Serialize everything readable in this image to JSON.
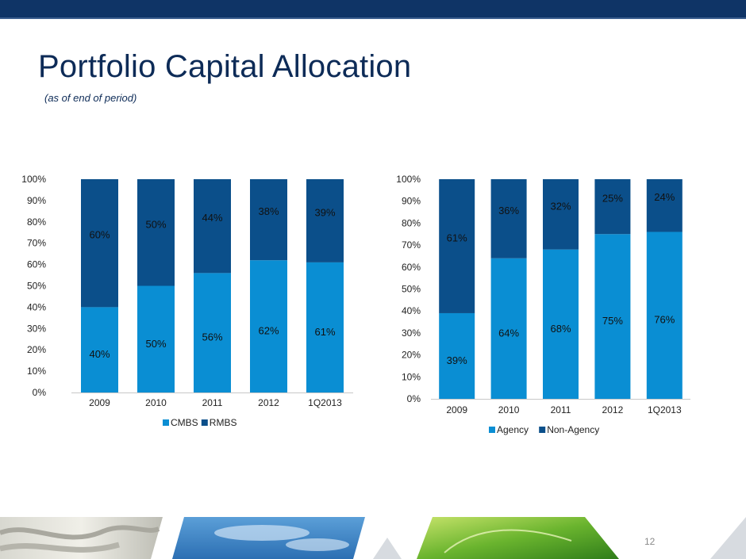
{
  "page": {
    "title": "Portfolio Capital Allocation",
    "subtitle": "(as of end of period)",
    "page_number": "12"
  },
  "colors": {
    "light_blue": "#0a8ed3",
    "dark_blue": "#0b4f8a",
    "navy": "#0d2b57"
  },
  "chart_data": [
    {
      "type": "bar",
      "stacked": true,
      "categories": [
        "2009",
        "2010",
        "2011",
        "2012",
        "1Q2013"
      ],
      "series": [
        {
          "name": "CMBS",
          "color": "#0a8ed3",
          "values": [
            40,
            50,
            56,
            62,
            61
          ],
          "labels": [
            "40%",
            "50%",
            "56%",
            "62%",
            "61%"
          ]
        },
        {
          "name": "RMBS",
          "color": "#0b4f8a",
          "values": [
            60,
            50,
            44,
            38,
            39
          ],
          "labels": [
            "60%",
            "50%",
            "44%",
            "38%",
            "39%"
          ]
        }
      ],
      "ylim": [
        0,
        100
      ],
      "yticks": [
        "0%",
        "10%",
        "20%",
        "30%",
        "40%",
        "50%",
        "60%",
        "70%",
        "80%",
        "90%",
        "100%"
      ],
      "legend": "bottom",
      "grid": false
    },
    {
      "type": "bar",
      "stacked": true,
      "categories": [
        "2009",
        "2010",
        "2011",
        "2012",
        "1Q2013"
      ],
      "series": [
        {
          "name": "Agency",
          "color": "#0a8ed3",
          "values": [
            39,
            64,
            68,
            75,
            76
          ],
          "labels": [
            "39%",
            "64%",
            "68%",
            "75%",
            "76%"
          ]
        },
        {
          "name": "Non-Agency",
          "color": "#0b4f8a",
          "values": [
            61,
            36,
            32,
            25,
            24
          ],
          "labels": [
            "61%",
            "36%",
            "32%",
            "25%",
            "24%"
          ]
        }
      ],
      "ylim": [
        0,
        100
      ],
      "yticks": [
        "0%",
        "10%",
        "20%",
        "30%",
        "40%",
        "50%",
        "60%",
        "70%",
        "80%",
        "90%",
        "100%"
      ],
      "legend": "bottom",
      "grid": false
    }
  ]
}
